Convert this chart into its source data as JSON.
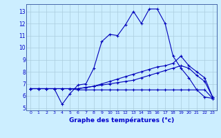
{
  "background_color": "#cceeff",
  "grid_color": "#aaccdd",
  "line_color": "#0000bb",
  "xlabel": "Graphe des températures (°c)",
  "xlabel_color": "#0000cc",
  "ylabel_ticks": [
    5,
    6,
    7,
    8,
    9,
    10,
    11,
    12,
    13
  ],
  "xlim": [
    -0.5,
    23.5
  ],
  "ylim": [
    4.8,
    13.6
  ],
  "line1": {
    "x": [
      0,
      1,
      2,
      3,
      4,
      5,
      6,
      7,
      8,
      9,
      10,
      11,
      12,
      13,
      14,
      15,
      16,
      17,
      18,
      19,
      20,
      21,
      22,
      23
    ],
    "y": [
      6.6,
      6.6,
      6.6,
      6.6,
      5.3,
      6.2,
      6.9,
      7.0,
      8.3,
      10.5,
      11.1,
      11.0,
      11.9,
      13.0,
      12.0,
      13.2,
      13.2,
      12.0,
      9.3,
      8.3,
      7.5,
      6.5,
      5.9,
      5.8
    ]
  },
  "line2": {
    "x": [
      0,
      1,
      2,
      3,
      4,
      5,
      6,
      7,
      8,
      9,
      10,
      11,
      12,
      13,
      14,
      15,
      16,
      17,
      18,
      19,
      20,
      21,
      22,
      23
    ],
    "y": [
      6.6,
      6.6,
      6.6,
      6.6,
      6.6,
      6.6,
      6.6,
      6.7,
      6.8,
      7.0,
      7.2,
      7.4,
      7.6,
      7.8,
      8.0,
      8.2,
      8.4,
      8.5,
      8.7,
      9.3,
      8.5,
      8.0,
      7.5,
      5.9
    ]
  },
  "line3": {
    "x": [
      0,
      1,
      2,
      3,
      4,
      5,
      6,
      7,
      8,
      9,
      10,
      11,
      12,
      13,
      14,
      15,
      16,
      17,
      18,
      19,
      20,
      21,
      22,
      23
    ],
    "y": [
      6.6,
      6.6,
      6.6,
      6.6,
      6.6,
      6.6,
      6.6,
      6.7,
      6.8,
      6.9,
      7.0,
      7.1,
      7.2,
      7.3,
      7.5,
      7.7,
      7.9,
      8.1,
      8.3,
      8.5,
      8.3,
      7.7,
      7.2,
      5.9
    ]
  },
  "line4": {
    "x": [
      0,
      1,
      2,
      3,
      4,
      5,
      6,
      7,
      8,
      9,
      10,
      11,
      12,
      13,
      14,
      15,
      16,
      17,
      18,
      19,
      20,
      21,
      22,
      23
    ],
    "y": [
      6.6,
      6.6,
      6.6,
      6.6,
      6.6,
      6.6,
      6.5,
      6.5,
      6.5,
      6.5,
      6.5,
      6.5,
      6.5,
      6.5,
      6.5,
      6.5,
      6.5,
      6.5,
      6.5,
      6.5,
      6.5,
      6.5,
      6.5,
      5.8
    ]
  }
}
